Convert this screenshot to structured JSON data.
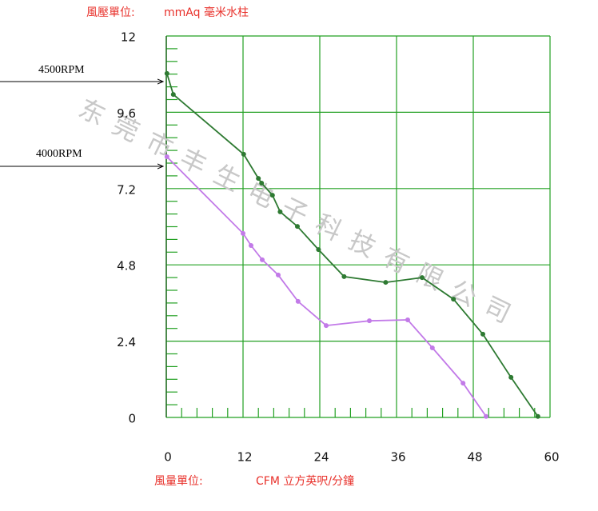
{
  "chart_data": {
    "type": "line",
    "y_unit_label": "風壓單位:",
    "y_label": "mmAq 毫米水柱",
    "x_unit_label": "風量單位:",
    "x_label": "CFM 立方英呎/分鐘",
    "watermark": "东莞市丰生电子科技有限公司",
    "xlim": [
      0,
      60
    ],
    "xticks": [
      0,
      12,
      24,
      36,
      48,
      60
    ],
    "ylim": [
      0,
      12
    ],
    "yticks": [
      0,
      2.4,
      4.8,
      7.2,
      9.6,
      12
    ],
    "grid": true,
    "grid_color": "#22a022",
    "series": [
      {
        "name": "4500RPM",
        "color": "#2e7a32",
        "x": [
          0.1,
          1.1,
          12.1,
          14.4,
          14.9,
          16.6,
          17.8,
          20.5,
          23.8,
          27.8,
          34.3,
          40,
          44.9,
          49.5,
          53.9,
          58.1
        ],
        "values": [
          10.82,
          10.16,
          8.28,
          7.52,
          7.37,
          6.99,
          6.47,
          6.01,
          5.28,
          4.43,
          4.25,
          4.4,
          3.72,
          2.62,
          1.26,
          0.03
        ]
      },
      {
        "name": "4000RPM",
        "color": "#c27ae8",
        "x": [
          0.1,
          12,
          13.25,
          15,
          17.5,
          20.6,
          25,
          31.75,
          37.75,
          41.6,
          46.4,
          50
        ],
        "values": [
          8.2,
          5.79,
          5.41,
          4.96,
          4.48,
          3.65,
          2.89,
          3.04,
          3.07,
          2.19,
          1.08,
          0.03
        ]
      }
    ]
  }
}
